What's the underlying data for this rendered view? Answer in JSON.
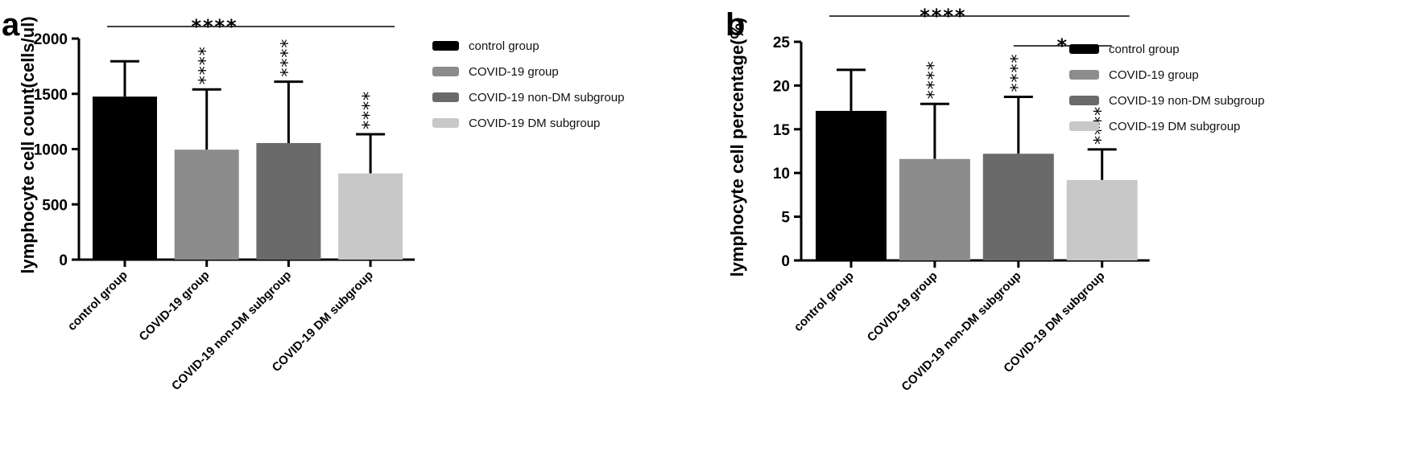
{
  "chart_data": [
    {
      "panel_label": "a",
      "type": "bar",
      "categories": [
        "control group",
        "COVID-19 group",
        "COVID-19 non-DM subgroup",
        "COVID-19 DM subgroup"
      ],
      "values": [
        1475,
        995,
        1055,
        780
      ],
      "error_upper": [
        1795,
        1540,
        1610,
        1135
      ],
      "colors": [
        "#000000",
        "#8c8c8c",
        "#6a6a6a",
        "#c8c8c8"
      ],
      "ylabel": "lymphocyte  cell count(cells/ul)",
      "ylim": [
        0,
        2000
      ],
      "yticks": [
        0,
        500,
        1000,
        1500,
        2000
      ],
      "bar_stars": [
        "",
        "****",
        "****",
        "****"
      ],
      "significance": [
        {
          "from": 0,
          "to": 3,
          "label": "****"
        }
      ],
      "legend": [
        "control group",
        "COVID-19 group",
        "COVID-19 non-DM subgroup",
        "COVID-19 DM subgroup"
      ]
    },
    {
      "panel_label": "b",
      "type": "bar",
      "categories": [
        "control group",
        "COVID-19 group",
        "COVID-19 non-DM subgroup",
        "COVID-19 DM subgroup"
      ],
      "values": [
        17.1,
        11.6,
        12.2,
        9.2
      ],
      "error_upper": [
        21.8,
        17.9,
        18.7,
        12.7
      ],
      "colors": [
        "#000000",
        "#8c8c8c",
        "#6a6a6a",
        "#c8c8c8"
      ],
      "ylabel": "lymphocyte  cell percentage(%)",
      "ylim": [
        0,
        25
      ],
      "yticks": [
        0,
        5,
        10,
        15,
        20,
        25
      ],
      "bar_stars": [
        "",
        "****",
        "****",
        "****"
      ],
      "significance": [
        {
          "from": 0,
          "to": 3,
          "label": "****"
        },
        {
          "from": 2,
          "to": 3,
          "label": "*"
        }
      ],
      "legend": [
        "control group",
        "COVID-19 group",
        "COVID-19 non-DM subgroup",
        "COVID-19 DM subgroup"
      ]
    }
  ]
}
